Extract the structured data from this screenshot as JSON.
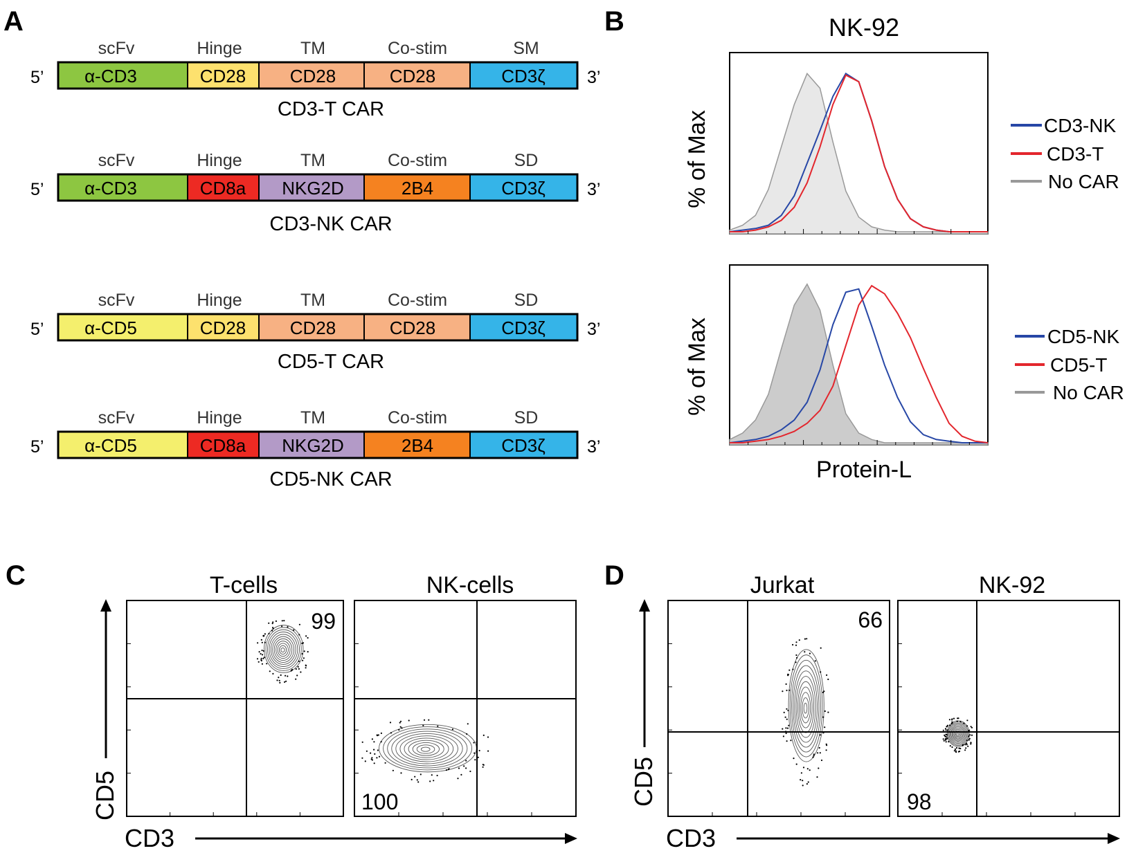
{
  "panels": {
    "A": {
      "label": "A",
      "constructs": [
        {
          "name": "CD3-T CAR",
          "domain_headers": [
            "scFv",
            "Hinge",
            "TM",
            "Co-stim",
            "SM"
          ],
          "five_prime": "5’",
          "three_prime": "3’",
          "segments": [
            {
              "text": "α-CD3",
              "color": "#8dc641"
            },
            {
              "text": "CD28",
              "color": "#fde16e"
            },
            {
              "text": "CD28",
              "color": "#f7b183"
            },
            {
              "text": "CD28",
              "color": "#f7b183"
            },
            {
              "text": "CD3ζ",
              "color": "#35b4e8"
            }
          ]
        },
        {
          "name": "CD3-NK CAR",
          "domain_headers": [
            "scFv",
            "Hinge",
            "TM",
            "Co-stim",
            "SD"
          ],
          "five_prime": "5’",
          "three_prime": "3’",
          "segments": [
            {
              "text": "α-CD3",
              "color": "#8dc641"
            },
            {
              "text": "CD8a",
              "color": "#ed2a23"
            },
            {
              "text": "NKG2D",
              "color": "#b39ac7"
            },
            {
              "text": "2B4",
              "color": "#f58220"
            },
            {
              "text": "CD3ζ",
              "color": "#35b4e8"
            }
          ]
        },
        {
          "name": "CD5-T CAR",
          "domain_headers": [
            "scFv",
            "Hinge",
            "TM",
            "Co-stim",
            "SD"
          ],
          "five_prime": "5’",
          "three_prime": "3’",
          "segments": [
            {
              "text": "α-CD5",
              "color": "#f4ef6d"
            },
            {
              "text": "CD28",
              "color": "#fde16e"
            },
            {
              "text": "CD28",
              "color": "#f7b183"
            },
            {
              "text": "CD28",
              "color": "#f7b183"
            },
            {
              "text": "CD3ζ",
              "color": "#35b4e8"
            }
          ]
        },
        {
          "name": "CD5-NK CAR",
          "domain_headers": [
            "scFv",
            "Hinge",
            "TM",
            "Co-stim",
            "SD"
          ],
          "five_prime": "5’",
          "three_prime": "3’",
          "segments": [
            {
              "text": "α-CD5",
              "color": "#f4ef6d"
            },
            {
              "text": "CD8a",
              "color": "#ed2a23"
            },
            {
              "text": "NKG2D",
              "color": "#b39ac7"
            },
            {
              "text": "2B4",
              "color": "#f58220"
            },
            {
              "text": "CD3ζ",
              "color": "#35b4e8"
            }
          ]
        }
      ]
    },
    "B": {
      "label": "B",
      "title": "NK-92",
      "xlabel": "Protein-L"
    },
    "C": {
      "label": "C",
      "xlabel": "CD3",
      "ylabel": "CD5",
      "plots": [
        {
          "title": "T-cells",
          "percent": "99"
        },
        {
          "title": "NK-cells",
          "percent": "100"
        }
      ]
    },
    "D": {
      "label": "D",
      "xlabel": "CD3",
      "ylabel": "CD5",
      "plots": [
        {
          "title": "Jurkat",
          "percent": "66"
        },
        {
          "title": "NK-92",
          "percent": "98"
        }
      ]
    }
  },
  "chart_data": [
    {
      "type": "area",
      "panel": "B-top",
      "title": "NK-92",
      "ylabel": "% of Max",
      "xlabel": "",
      "xscale": "log",
      "ylim": [
        0,
        100
      ],
      "legend_position": "right",
      "x": [
        0.0,
        0.05,
        0.1,
        0.15,
        0.2,
        0.25,
        0.3,
        0.35,
        0.4,
        0.45,
        0.5,
        0.55,
        0.6,
        0.65,
        0.7,
        0.75,
        0.8,
        0.85,
        0.9,
        0.95,
        1.0
      ],
      "series": [
        {
          "name": "CD3-NK",
          "color": "#2747a6",
          "filled": false,
          "values": [
            0,
            1,
            2,
            4,
            10,
            22,
            42,
            62,
            83,
            97,
            92,
            68,
            40,
            20,
            8,
            3,
            1,
            0,
            0,
            0,
            0
          ]
        },
        {
          "name": "CD3-T",
          "color": "#e3262d",
          "filled": false,
          "values": [
            0,
            0,
            1,
            3,
            7,
            15,
            30,
            52,
            78,
            96,
            92,
            68,
            40,
            20,
            8,
            3,
            1,
            0,
            0,
            0,
            0
          ]
        },
        {
          "name": "No CAR",
          "color": "#999999",
          "filled": true,
          "fill": "#e8e8e8",
          "values": [
            1,
            4,
            10,
            26,
            52,
            78,
            97,
            88,
            55,
            25,
            9,
            3,
            1,
            0,
            0,
            0,
            0,
            0,
            0,
            0,
            0
          ]
        }
      ]
    },
    {
      "type": "area",
      "panel": "B-bottom",
      "title": "",
      "ylabel": "% of Max",
      "xlabel": "Protein-L",
      "xscale": "log",
      "ylim": [
        0,
        100
      ],
      "legend_position": "right",
      "x": [
        0.0,
        0.05,
        0.1,
        0.15,
        0.2,
        0.25,
        0.3,
        0.35,
        0.4,
        0.45,
        0.5,
        0.55,
        0.6,
        0.65,
        0.7,
        0.75,
        0.8,
        0.85,
        0.9,
        0.95,
        1.0
      ],
      "series": [
        {
          "name": "CD5-NK",
          "color": "#2747a6",
          "filled": false,
          "values": [
            0,
            1,
            2,
            4,
            8,
            14,
            25,
            45,
            73,
            93,
            95,
            72,
            48,
            28,
            13,
            5,
            2,
            1,
            0,
            0,
            0
          ]
        },
        {
          "name": "CD5-T",
          "color": "#e3262d",
          "filled": false,
          "values": [
            0,
            0,
            1,
            2,
            4,
            7,
            12,
            20,
            35,
            60,
            85,
            97,
            92,
            80,
            65,
            46,
            28,
            12,
            4,
            1,
            0
          ]
        },
        {
          "name": "No CAR",
          "color": "#999999",
          "filled": true,
          "fill": "#cccccc",
          "values": [
            2,
            6,
            14,
            30,
            58,
            85,
            98,
            82,
            48,
            18,
            6,
            2,
            0,
            0,
            0,
            0,
            0,
            0,
            0,
            0,
            0
          ]
        }
      ]
    },
    {
      "type": "scatter",
      "panel": "C-T-cells",
      "title": "T-cells",
      "xlabel": "CD3",
      "ylabel": "CD5",
      "quadrant_percent": "99",
      "population_center": [
        0.72,
        0.77
      ],
      "spread": [
        0.09,
        0.11
      ]
    },
    {
      "type": "scatter",
      "panel": "C-NK-cells",
      "title": "NK-cells",
      "xlabel": "CD3",
      "ylabel": "CD5",
      "quadrant_percent": "100",
      "population_center": [
        0.32,
        0.31
      ],
      "spread": [
        0.22,
        0.11
      ]
    },
    {
      "type": "scatter",
      "panel": "D-Jurkat",
      "title": "Jurkat",
      "xlabel": "CD3",
      "ylabel": "CD5",
      "quadrant_percent": "66",
      "population_center": [
        0.62,
        0.5
      ],
      "spread": [
        0.08,
        0.26
      ]
    },
    {
      "type": "scatter",
      "panel": "D-NK-92",
      "title": "NK-92",
      "xlabel": "CD3",
      "ylabel": "CD5",
      "quadrant_percent": "98",
      "population_center": [
        0.27,
        0.38
      ],
      "spread": [
        0.05,
        0.06
      ]
    }
  ]
}
